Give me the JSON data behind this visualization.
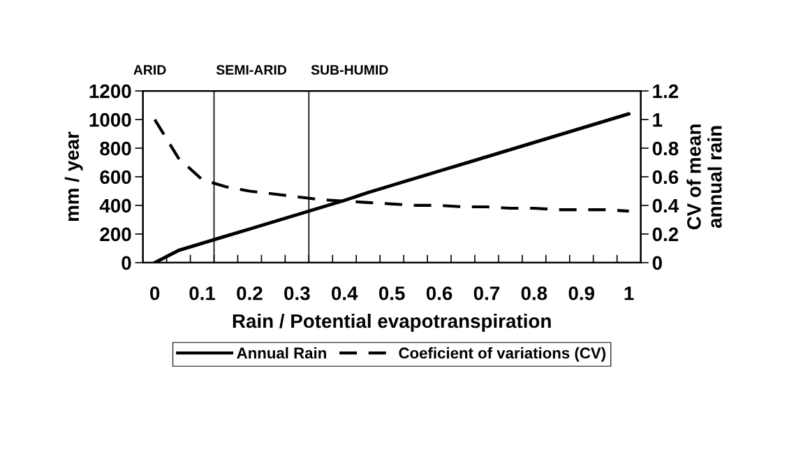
{
  "chart_data": {
    "type": "line",
    "xlabel": "Rain / Potential evapotranspiration",
    "ylabel": "mm / year",
    "y2label": "CV of mean\nannual rain",
    "x": [
      0,
      0.05,
      0.1,
      0.15,
      0.2,
      0.25,
      0.3,
      0.35,
      0.4,
      0.45,
      0.5,
      0.55,
      0.6,
      0.65,
      0.7,
      0.75,
      0.8,
      0.85,
      0.9,
      0.95,
      1
    ],
    "xlim": [
      -0.025,
      1.025
    ],
    "xticks": [
      0,
      0.1,
      0.2,
      0.3,
      0.4,
      0.5,
      0.6,
      0.7,
      0.8,
      0.9,
      1,
      {
        "value": 0.025,
        "label": null
      },
      {
        "value": 0.075,
        "label": null
      },
      {
        "value": 0.125,
        "label": null
      },
      {
        "value": 0.175,
        "label": null
      },
      {
        "value": 0.225,
        "label": null
      },
      {
        "value": 0.275,
        "label": null
      },
      {
        "value": 0.325,
        "label": null
      },
      {
        "value": 0.375,
        "label": null
      },
      {
        "value": 0.425,
        "label": null
      },
      {
        "value": 0.475,
        "label": null
      },
      {
        "value": 0.525,
        "label": null
      },
      {
        "value": 0.575,
        "label": null
      },
      {
        "value": 0.625,
        "label": null
      },
      {
        "value": 0.675,
        "label": null
      },
      {
        "value": 0.725,
        "label": null
      },
      {
        "value": 0.775,
        "label": null
      },
      {
        "value": 0.825,
        "label": null
      },
      {
        "value": 0.875,
        "label": null
      },
      {
        "value": 0.925,
        "label": null
      },
      {
        "value": 0.975,
        "label": null
      }
    ],
    "ylim": [
      0,
      1200
    ],
    "yticks": [
      0,
      200,
      400,
      600,
      800,
      1000,
      1200
    ],
    "y2lim": [
      0,
      1.2
    ],
    "y2ticks": [
      0,
      0.2,
      0.4,
      0.6,
      0.8,
      1,
      1.2
    ],
    "series": [
      {
        "name": "Annual Rain",
        "color": "#000000",
        "line_style": "solid",
        "values": [
          0,
          85,
          135,
          185,
          235,
          285,
          335,
          385,
          435,
          490,
          540,
          590,
          640,
          690,
          740,
          790,
          840,
          890,
          940,
          990,
          1040
        ]
      },
      {
        "name": "Coeficient of variations (CV)",
        "color": "#000000",
        "line_style": "dashed",
        "axis": "y2",
        "values": [
          1.0,
          0.73,
          0.58,
          0.53,
          0.5,
          0.48,
          0.46,
          0.44,
          0.43,
          0.42,
          0.41,
          0.4,
          0.4,
          0.39,
          0.39,
          0.38,
          0.38,
          0.37,
          0.37,
          0.37,
          0.36
        ]
      }
    ],
    "ref_lines": [
      {
        "axis": "x",
        "value": 0.125,
        "color": "#000000",
        "label": "SEMI-ARID"
      },
      {
        "axis": "x",
        "value": 0.325,
        "color": "#000000",
        "label": "SUB-HUMID"
      }
    ],
    "annotations": [
      "ARID"
    ],
    "grid": false,
    "legend": "bottom",
    "marker": "none"
  }
}
